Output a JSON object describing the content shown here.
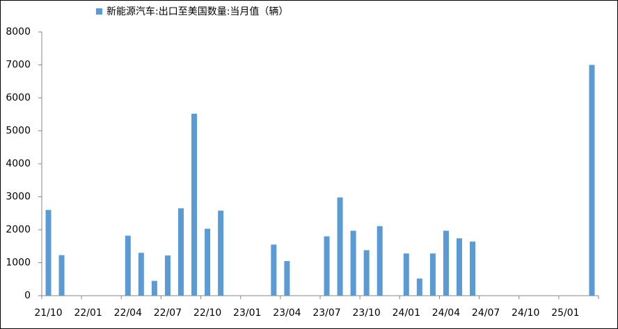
{
  "chart_data": {
    "type": "bar",
    "categories": [
      "21/10",
      null,
      null,
      "22/01",
      null,
      null,
      "22/04",
      null,
      null,
      "22/07",
      null,
      null,
      "22/10",
      null,
      null,
      "23/01",
      null,
      null,
      "23/04",
      null,
      null,
      "23/07",
      null,
      null,
      "23/10",
      null,
      null,
      "24/01",
      null,
      null,
      "24/04",
      null,
      null,
      "24/07",
      null,
      null,
      "24/10",
      null,
      null,
      "25/01",
      null,
      null
    ],
    "series": [
      {
        "name": "新能源汽车:出口至美国数量:当月值（辆）",
        "color": "#5b9bd5",
        "values": [
          2600,
          1230,
          null,
          null,
          null,
          null,
          1820,
          1300,
          450,
          1220,
          2650,
          5520,
          2030,
          2580,
          null,
          null,
          null,
          1550,
          1050,
          null,
          null,
          1800,
          2980,
          1970,
          1380,
          2110,
          null,
          1280,
          520,
          1280,
          1970,
          1740,
          1640,
          null,
          null,
          null,
          null,
          null,
          null,
          null,
          null,
          7000
        ]
      }
    ],
    "ylim": [
      0,
      8000
    ],
    "yticks": [
      0,
      1000,
      2000,
      3000,
      4000,
      5000,
      6000,
      7000,
      8000
    ],
    "legend": "top"
  }
}
